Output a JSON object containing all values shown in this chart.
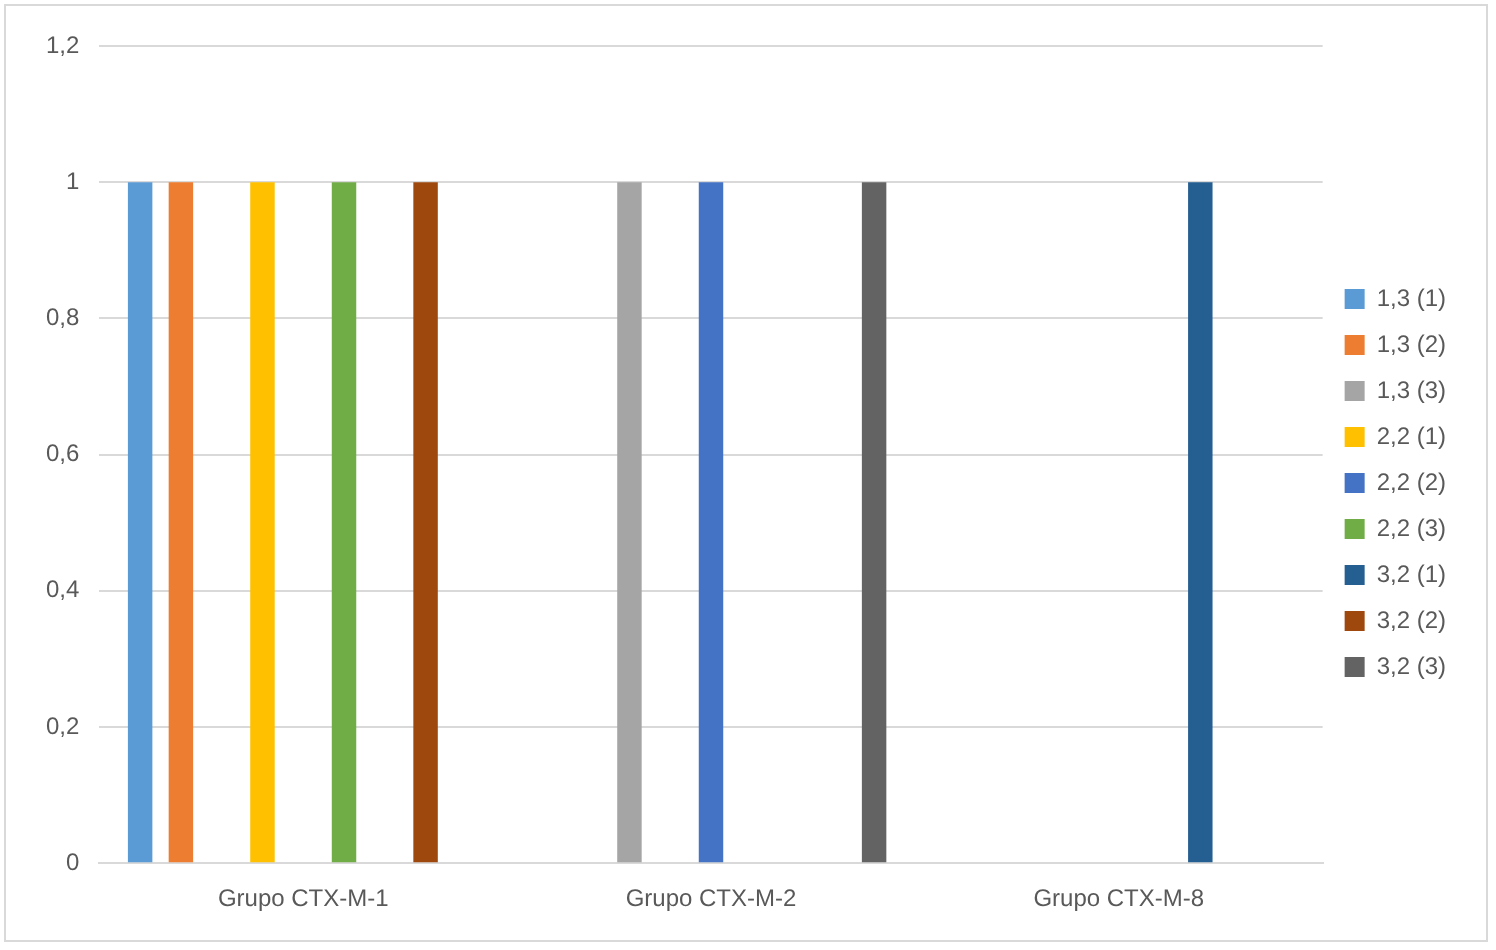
{
  "chart_data": {
    "type": "bar",
    "categories": [
      "Grupo CTX-M-1",
      "Grupo CTX-M-2",
      "Grupo CTX-M-8"
    ],
    "series": [
      {
        "name": "1,3 (1)",
        "color": "#5b9bd5",
        "values": [
          1,
          0,
          0
        ]
      },
      {
        "name": "1,3 (2)",
        "color": "#ed7d31",
        "values": [
          1,
          0,
          0
        ]
      },
      {
        "name": "1,3 (3)",
        "color": "#a5a5a5",
        "values": [
          0,
          1,
          0
        ]
      },
      {
        "name": "2,2 (1)",
        "color": "#ffc000",
        "values": [
          1,
          0,
          0
        ]
      },
      {
        "name": "2,2 (2)",
        "color": "#4472c4",
        "values": [
          0,
          1,
          0
        ]
      },
      {
        "name": "2,2 (3)",
        "color": "#70ad47",
        "values": [
          1,
          0,
          0
        ]
      },
      {
        "name": "3,2 (1)",
        "color": "#255e91",
        "values": [
          0,
          0,
          1
        ]
      },
      {
        "name": "3,2 (2)",
        "color": "#9e480e",
        "values": [
          1,
          0,
          0
        ]
      },
      {
        "name": "3,2 (3)",
        "color": "#636363",
        "values": [
          0,
          1,
          0
        ]
      }
    ],
    "ylim": [
      0,
      1.2
    ],
    "yticks": [
      0,
      {
        "value": 0.2,
        "label": "0,2"
      },
      {
        "value": 0.4,
        "label": "0,4"
      },
      {
        "value": 0.6,
        "label": "0,6"
      },
      {
        "value": 0.8,
        "label": "0,8"
      },
      1,
      {
        "value": 1.2,
        "label": "1,2"
      }
    ],
    "grid": "y",
    "legend": "right"
  }
}
